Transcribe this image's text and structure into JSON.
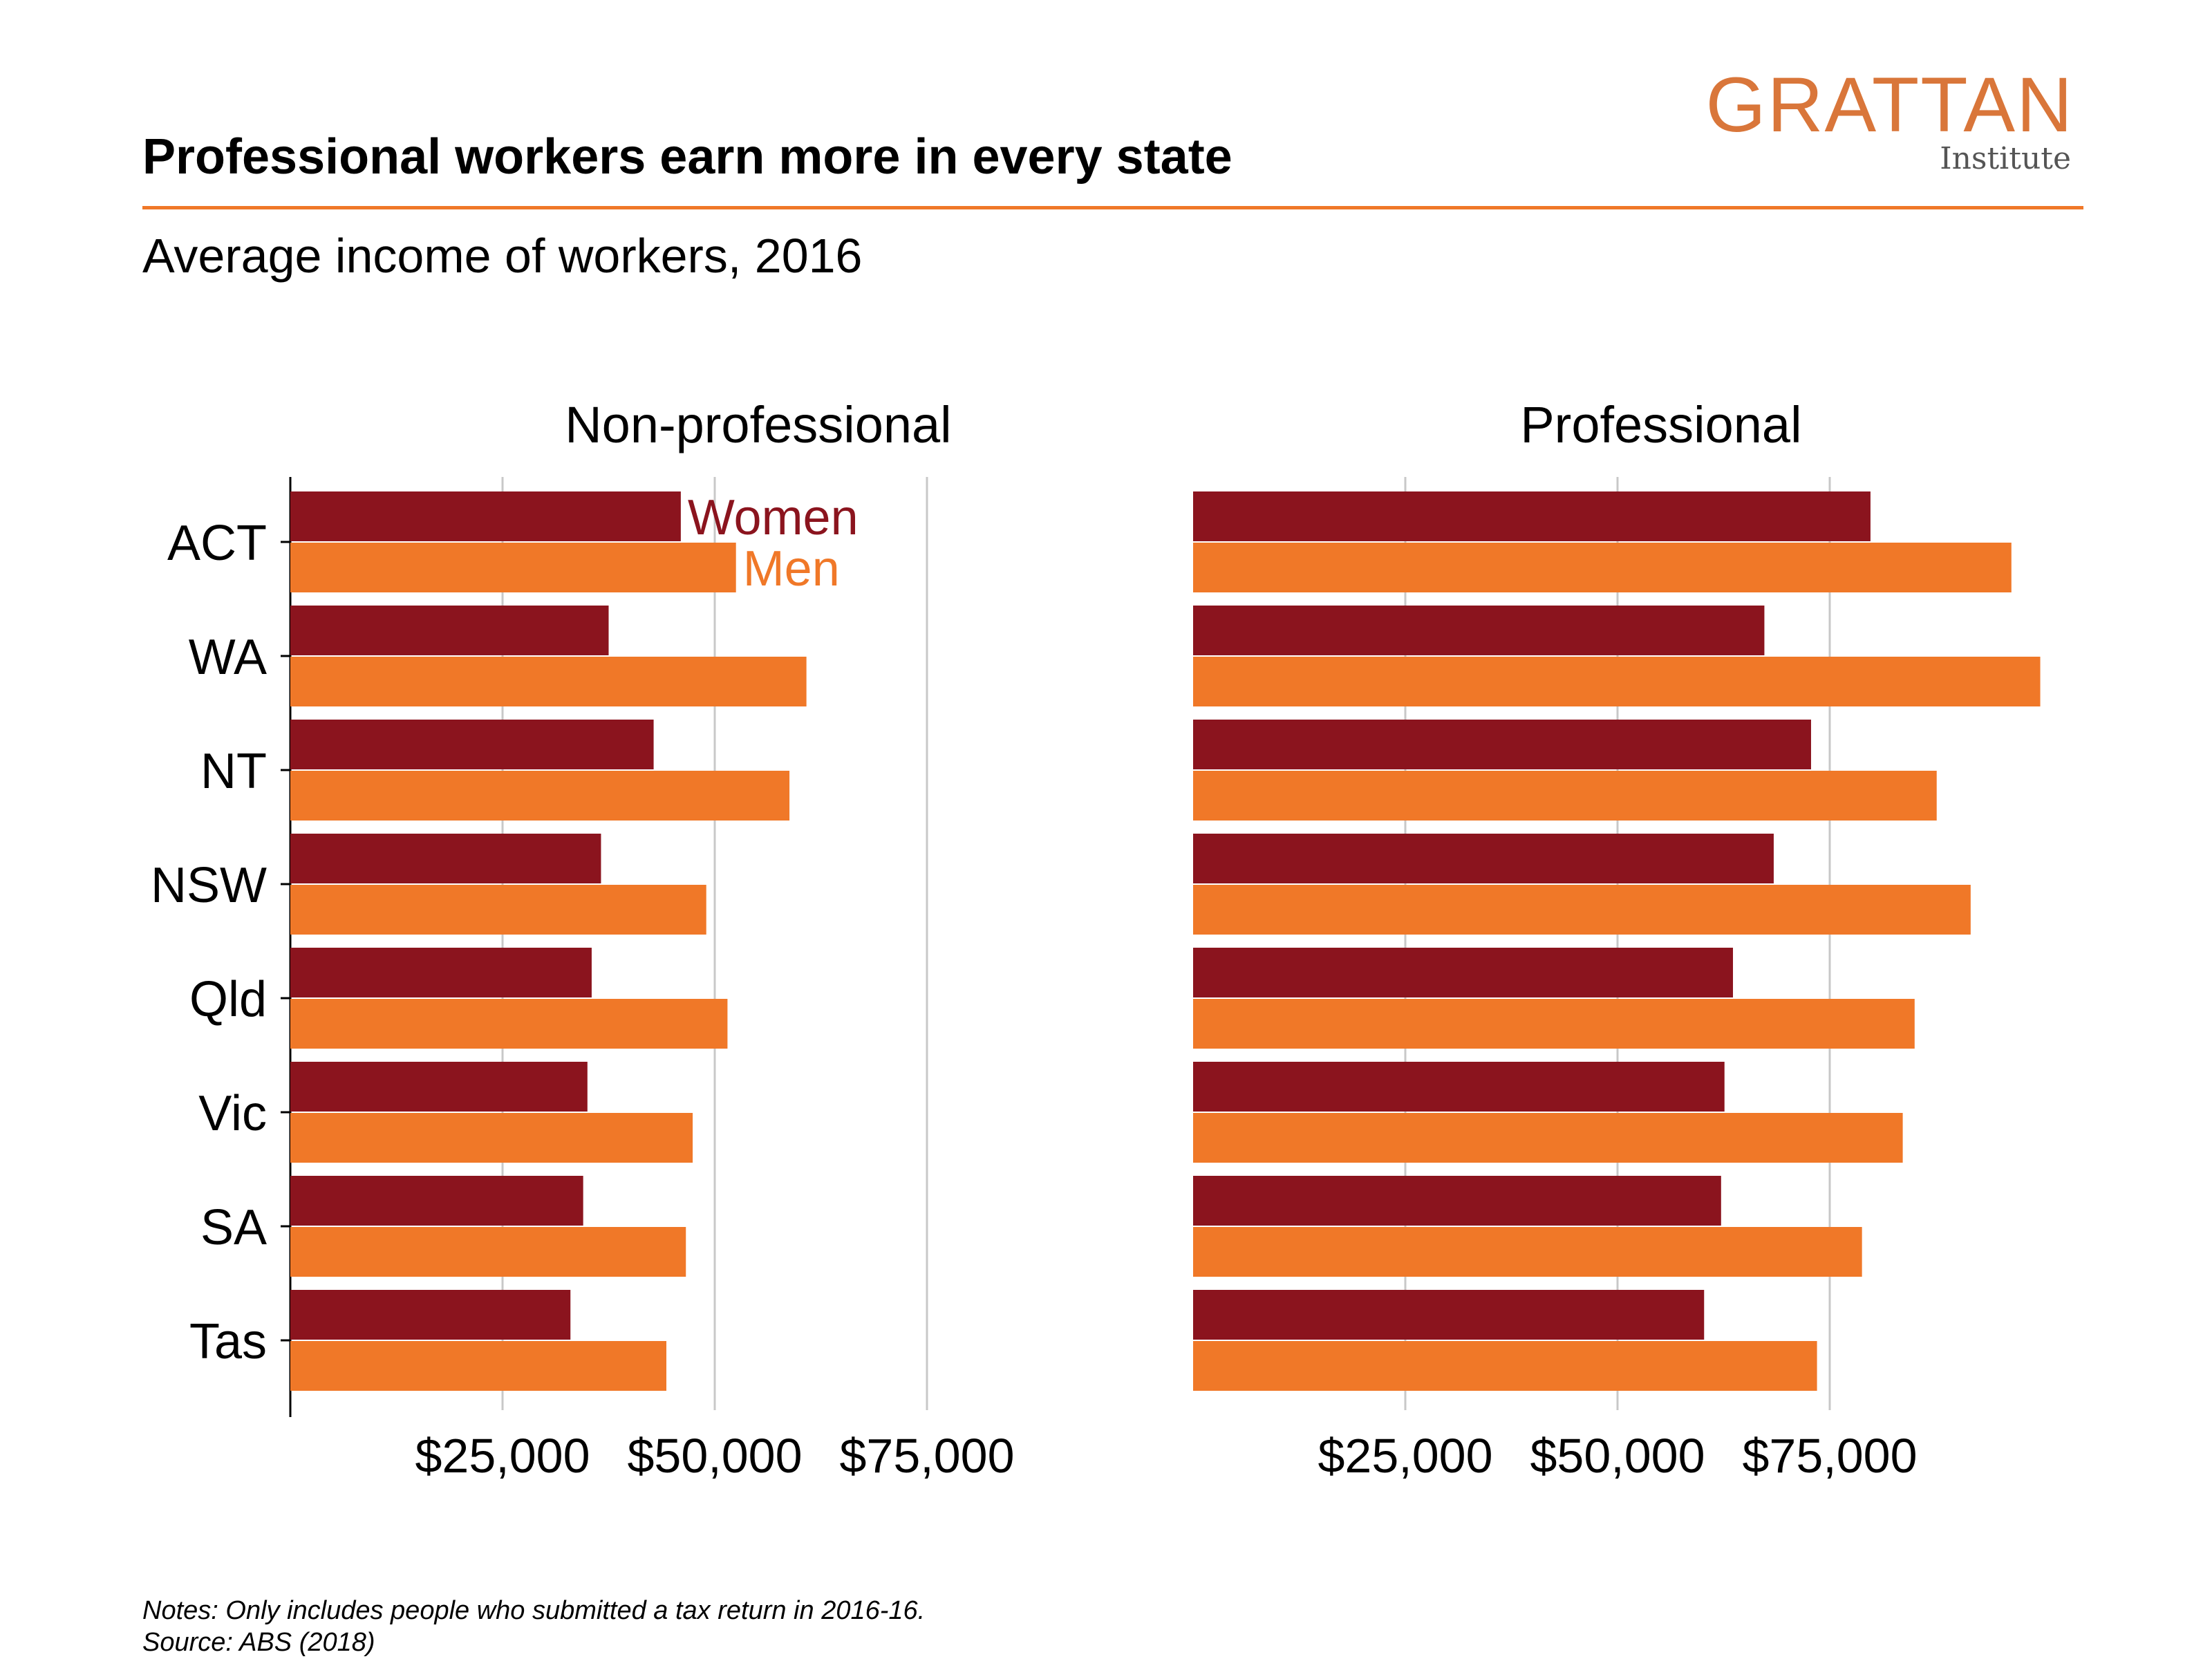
{
  "header": {
    "title": "Professional workers earn more in every state",
    "subtitle": "Average income of workers, 2016"
  },
  "logo": {
    "name": "GRATTAN",
    "sub": "Institute"
  },
  "notes": {
    "line1": "Notes: Only includes people who submitted a tax return in 2016-16.",
    "line2": "Source: ABS (2018)"
  },
  "colors": {
    "women": "#8B141E",
    "men": "#F07828",
    "accent": "#F07828",
    "grid": "#c8c8c8"
  },
  "chart_data": {
    "type": "bar",
    "orientation": "horizontal",
    "categories": [
      "ACT",
      "WA",
      "NT",
      "NSW",
      "Qld",
      "Vic",
      "SA",
      "Tas"
    ],
    "xlim": [
      0,
      90000
    ],
    "xticks": [
      25000,
      50000,
      75000
    ],
    "xtick_labels": [
      "$25,000",
      "$50,000",
      "$75,000"
    ],
    "grid": "vertical",
    "legend": "direct labels on first panel (top)",
    "panels": [
      {
        "title": "Non-professional",
        "series": [
          {
            "name": "Women",
            "values": [
              46000,
              37500,
              42800,
              36600,
              35500,
              35000,
              34500,
              33000
            ]
          },
          {
            "name": "Men",
            "values": [
              52500,
              60800,
              58800,
              49000,
              51500,
              47400,
              46600,
              44300
            ]
          }
        ]
      },
      {
        "title": "Professional",
        "series": [
          {
            "name": "Women",
            "values": [
              79800,
              67300,
              72800,
              68400,
              63600,
              62600,
              62200,
              60200
            ]
          },
          {
            "name": "Men",
            "values": [
              96400,
              99800,
              87600,
              91600,
              85000,
              83600,
              78800,
              73500
            ]
          }
        ]
      }
    ]
  }
}
